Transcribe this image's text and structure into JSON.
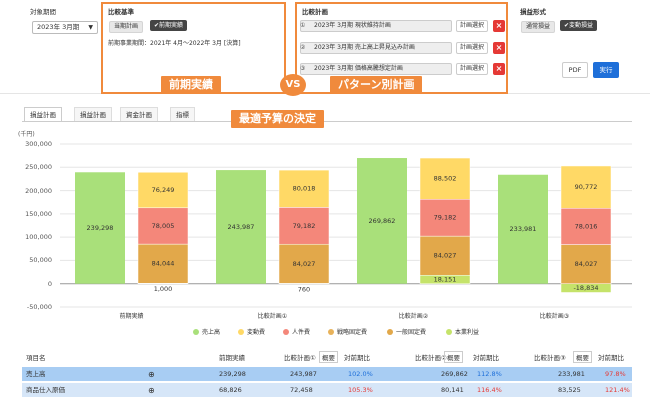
{
  "filters": {
    "period_label": "対象期間",
    "period_value": "2023年 3月期",
    "basis_label": "比較基準",
    "basis_current": "当期計画",
    "basis_previous": "前期実績",
    "basis_note": "前期事業期間：2021年 4月〜2022年 3月 [決算]",
    "compare_label": "比較計画",
    "plans": [
      {
        "num": "①",
        "name": "2023年 3月期 現状維持計画",
        "pick": "計画選択"
      },
      {
        "num": "②",
        "name": "2023年 3月期 売上高上昇見込み計画",
        "pick": "計画選択"
      },
      {
        "num": "③",
        "name": "2023年 3月期 価格高騰想定計画",
        "pick": "計画選択"
      }
    ],
    "delete_symbol": "×",
    "pl_label": "損益形式",
    "pl_normal": "通常損益",
    "pl_variable": "変動損益",
    "pdf_button": "PDF",
    "run_button": "実行"
  },
  "callouts": {
    "previous": "前期実績",
    "vs": "VS",
    "pattern": "パターン別計画",
    "decision": "最適予算の決定"
  },
  "tabs": [
    "損益計画",
    "損益計画",
    "資金計画",
    "指標"
  ],
  "colors": {
    "sales": "#a9e07a",
    "variable": "#ffd966",
    "labor": "#f4877a",
    "strategic": "#e8b25a",
    "general": "#e2a84a",
    "profit": "#c5e36a",
    "callout": "#f08a3c",
    "highlight_row": "#a8cdf3",
    "negative": "#e53935",
    "positive": "#1e6fd9"
  },
  "chart_data": {
    "type": "bar",
    "unit_label": "(千円)",
    "ylim": [
      -50000,
      300000
    ],
    "yticks": [
      "300,000",
      "250,000",
      "200,000",
      "150,000",
      "100,000",
      "50,000",
      "0",
      "-50,000"
    ],
    "categories": [
      "前期実績",
      "比較計画①",
      "比較計画②",
      "比較計画③"
    ],
    "sales": [
      239298,
      243987,
      269862,
      233981
    ],
    "sales_labels": [
      "239,298",
      "243,987",
      "269,862",
      "233,981"
    ],
    "stack_order": [
      "本業利益",
      "一般固定費",
      "戦略固定費",
      "人件費",
      "変動費"
    ],
    "series": [
      {
        "name": "変動費",
        "values": [
          76249,
          80018,
          88502,
          90772
        ],
        "labels": [
          "76,249",
          "80,018",
          "88,502",
          "90,772"
        ]
      },
      {
        "name": "人件費",
        "values": [
          78005,
          79182,
          79182,
          78016
        ],
        "labels": [
          "78,005",
          "79,182",
          "79,182",
          "78,016"
        ]
      },
      {
        "name": "戦略固定費",
        "values": [
          0,
          0,
          0,
          0
        ],
        "labels": [
          "0",
          "0",
          "0",
          "0"
        ]
      },
      {
        "name": "一般固定費",
        "values": [
          84044,
          84027,
          84027,
          84027
        ],
        "labels": [
          "84,044",
          "84,027",
          "84,027",
          "84,027"
        ]
      },
      {
        "name": "本業利益",
        "values": [
          1000,
          760,
          18151,
          -18834
        ],
        "labels": [
          "1,000",
          "760",
          "18,151",
          "-18,834"
        ]
      }
    ],
    "legend": [
      "売上高",
      "変動費",
      "人件費",
      "戦略固定費",
      "一般固定費",
      "本業利益"
    ]
  },
  "table": {
    "headers": {
      "item": "項目名",
      "prev": "前期実績",
      "p1": "比較計画①",
      "overview": "概要",
      "ratio": "対前期比",
      "p2": "比較計画②",
      "p3": "比較計画③"
    },
    "rows": [
      {
        "name": "売上高",
        "expand": "⊕",
        "prev": "239,298",
        "p1": "243,987",
        "r1": "102.0%",
        "p2": "269,862",
        "r2": "112.8%",
        "p3": "233,981",
        "r3": "97.8%"
      },
      {
        "name": "商品仕入原価",
        "expand": "⊕",
        "prev": "68,826",
        "p1": "72,458",
        "r1": "105.3%",
        "p2": "80,141",
        "r2": "116.4%",
        "p3": "83,525",
        "r3": "121.4%"
      }
    ]
  }
}
